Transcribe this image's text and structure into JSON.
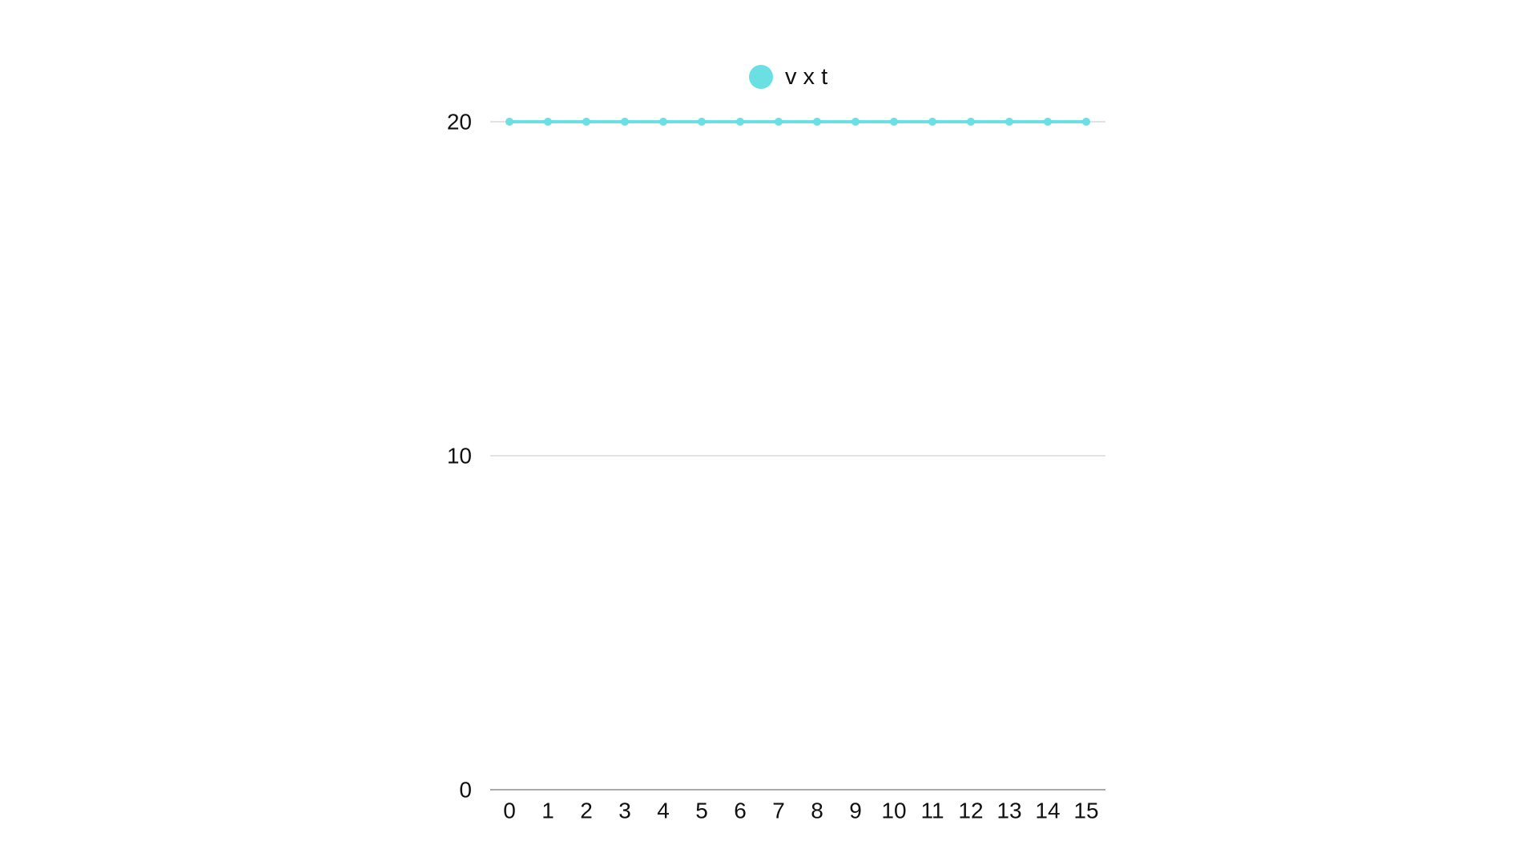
{
  "chart_data": {
    "type": "line",
    "x": [
      0,
      1,
      2,
      3,
      4,
      5,
      6,
      7,
      8,
      9,
      10,
      11,
      12,
      13,
      14,
      15
    ],
    "series": [
      {
        "name": "v x t",
        "values": [
          20,
          20,
          20,
          20,
          20,
          20,
          20,
          20,
          20,
          20,
          20,
          20,
          20,
          20,
          20,
          20
        ],
        "color": "#6ae0e2"
      }
    ],
    "ylim": [
      0,
      20
    ],
    "yticks": [
      0,
      10,
      20
    ],
    "xticks": [
      0,
      1,
      2,
      3,
      4,
      5,
      6,
      7,
      8,
      9,
      10,
      11,
      12,
      13,
      14,
      15
    ],
    "title": "",
    "xlabel": "",
    "ylabel": "",
    "grid": true,
    "legend_position": "top-center",
    "gridline_color": "#d9d9d9",
    "axis_color": "#aaaaaa"
  }
}
